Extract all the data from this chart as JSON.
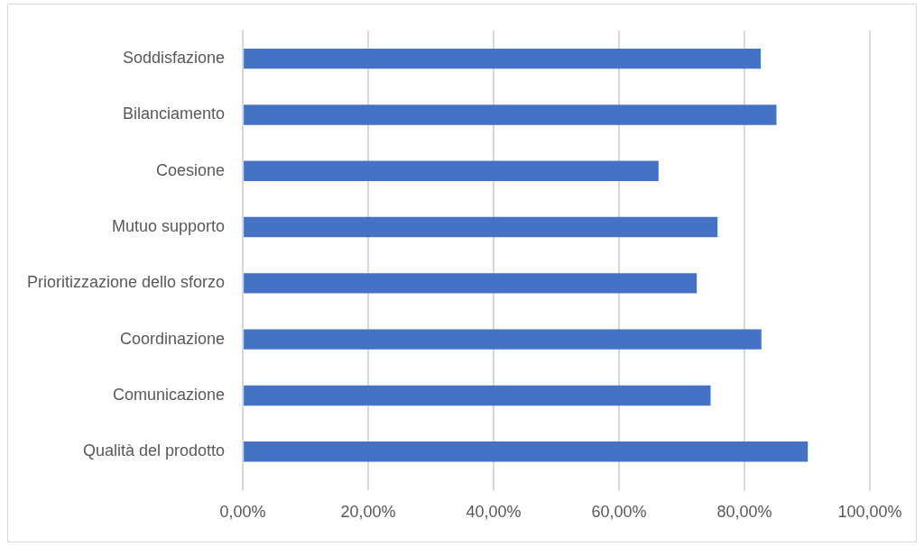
{
  "chart_data": {
    "type": "bar",
    "orientation": "horizontal",
    "categories": [
      "Soddisfazione",
      "Bilanciamento",
      "Coesione",
      "Mutuo supporto",
      "Prioritizzazione dello sforzo",
      "Coordinazione",
      "Comunicazione",
      "Qualità del prodotto"
    ],
    "values": [
      82.6,
      85.1,
      66.3,
      75.7,
      72.4,
      82.7,
      74.6,
      90.1
    ],
    "color": "#4472c4",
    "xlim": [
      0,
      100
    ],
    "xticks": [
      {
        "value": 0,
        "label": "0,00%"
      },
      {
        "value": 20,
        "label": "20,00%"
      },
      {
        "value": 40,
        "label": "40,00%"
      },
      {
        "value": 60,
        "label": "60,00%"
      },
      {
        "value": 80,
        "label": "80,00%"
      },
      {
        "value": 100,
        "label": "100,00%"
      }
    ],
    "grid": "x",
    "legend": false
  }
}
